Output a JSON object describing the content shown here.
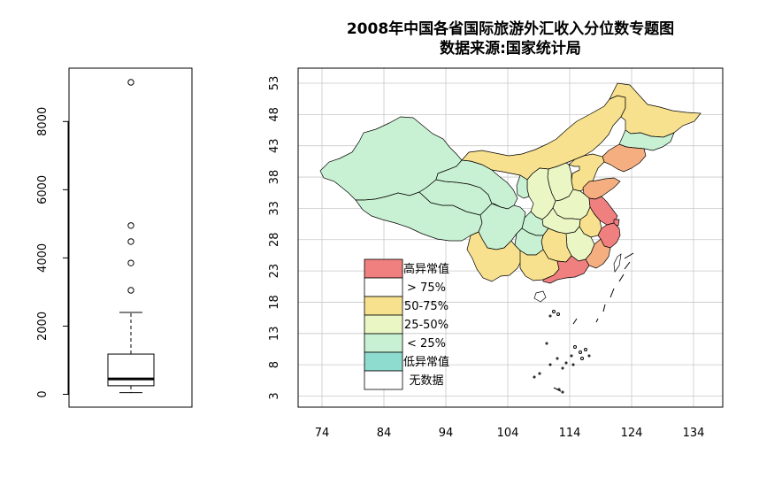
{
  "colors": {
    "high_outlier": "#F08080",
    "above_75": "#FFFFFF",
    "p50_75": "#F7E08E",
    "p25_50": "#EAF6C4",
    "below_25": "#C8F0D2",
    "low_outlier": "#8EDCD0",
    "no_data": "#FFFFFF",
    "orange_province": "#F4AE80",
    "grid": "#C8C8C8",
    "border": "#000000"
  },
  "chart_data": [
    {
      "type": "box",
      "ylim": [
        0,
        9300
      ],
      "y_ticks": [
        "0",
        "2000",
        "4000",
        "6000",
        "8000"
      ],
      "y_tick_values": [
        0,
        2000,
        4000,
        6000,
        8000
      ],
      "whisker_low": 50,
      "q1": 250,
      "median": 450,
      "q3": 1180,
      "whisker_high": 2400,
      "outliers": [
        3050,
        3850,
        4480,
        4950,
        9150
      ],
      "grid": false
    },
    {
      "type": "map",
      "title": "2008年中国各省国际旅游外汇收入分位数专题图",
      "subtitle": "数据来源:国家统计局",
      "xlim": [
        71.5,
        136.5
      ],
      "ylim": [
        0.5,
        55
      ],
      "x_ticks": [
        "74",
        "84",
        "94",
        "104",
        "114",
        "124",
        "134"
      ],
      "x_tick_values": [
        74,
        84,
        94,
        104,
        114,
        124,
        134
      ],
      "y_ticks": [
        "3",
        "8",
        "13",
        "18",
        "23",
        "28",
        "33",
        "38",
        "43",
        "48",
        "53"
      ],
      "y_tick_values": [
        3,
        8,
        13,
        18,
        23,
        28,
        33,
        38,
        43,
        48,
        53
      ],
      "grid": true,
      "legend_position": "bottom-left",
      "legend": [
        {
          "label": "高异常值",
          "color": "#F08080"
        },
        {
          "label": "> 75%",
          "color": "#FFFFFF"
        },
        {
          "label": "50-75%",
          "color": "#F7E08E"
        },
        {
          "label": "25-50%",
          "color": "#EAF6C4"
        },
        {
          "label": "< 25%",
          "color": "#C8F0D2"
        },
        {
          "label": "低异常值",
          "color": "#8EDCD0"
        },
        {
          "label": "无数据",
          "color": "#FFFFFF"
        }
      ]
    }
  ]
}
